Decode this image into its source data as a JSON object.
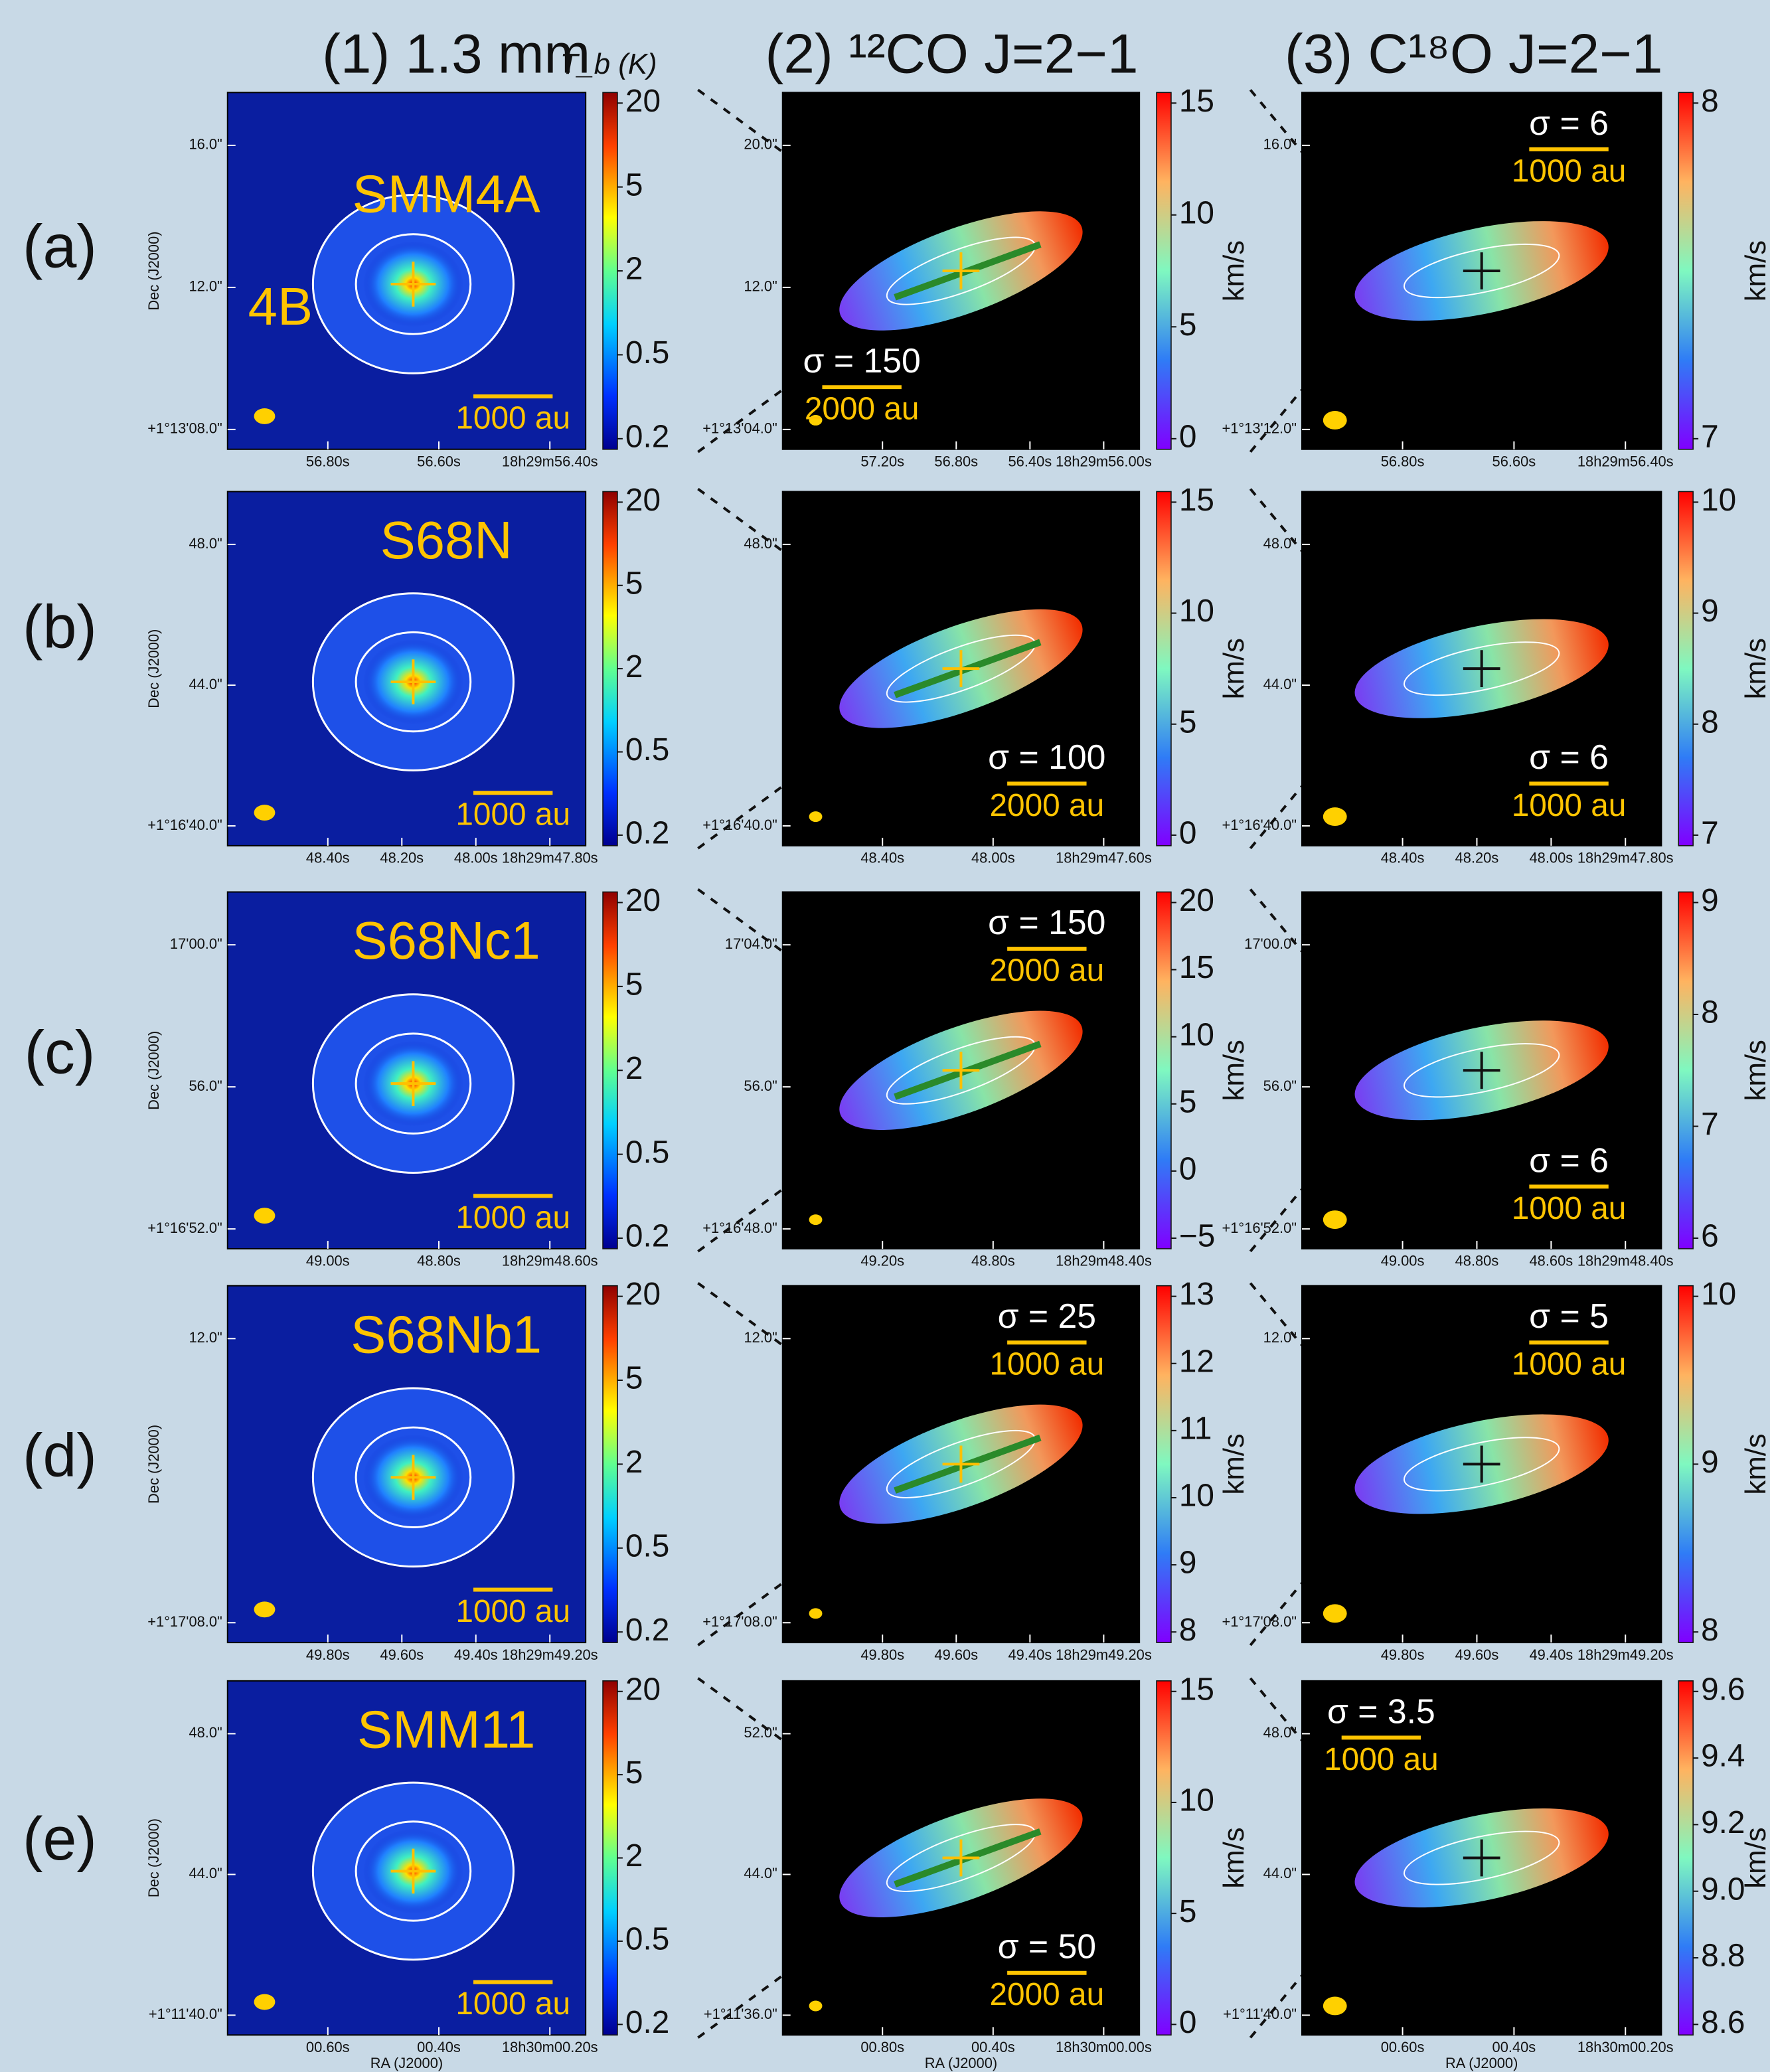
{
  "columns": [
    {
      "label": "(1) 1.3 mm",
      "unit": "T_b (K)"
    },
    {
      "label": "(2) ¹²CO J=2−1"
    },
    {
      "label": "(3) C¹⁸O J=2−1"
    }
  ],
  "rows": [
    {
      "label": "(a)",
      "panels": [
        {
          "names": [
            "SMM4A",
            "4B"
          ],
          "ylabel": "Dec (J2000)",
          "dec_ticks": [
            "16.0\"",
            "12.0\"",
            "+1°13'08.0\""
          ],
          "ra_ticks": [
            "56.80s",
            "56.60s",
            "18h29m56.40s"
          ],
          "scale": "1000 au",
          "cbar_ticks": [
            "20",
            "5",
            "2",
            "0.5",
            "0.2"
          ]
        },
        {
          "dec_ticks": [
            "20.0\"",
            "12.0\"",
            "+1°13'04.0\""
          ],
          "ra_ticks": [
            "57.20s",
            "56.80s",
            "56.40s",
            "18h29m56.00s"
          ],
          "sigma": "σ = 150",
          "scale": "2000 au",
          "cbar_ticks": [
            "15",
            "10",
            "5",
            "0"
          ],
          "cbar_label": "km/s"
        },
        {
          "dec_ticks": [
            "16.0\"",
            "+1°13'12.0\""
          ],
          "ra_ticks": [
            "56.80s",
            "56.60s",
            "18h29m56.40s"
          ],
          "sigma": "σ = 6",
          "scale": "1000 au",
          "cbar_ticks": [
            "8",
            "7"
          ],
          "cbar_label": "km/s"
        }
      ]
    },
    {
      "label": "(b)",
      "panels": [
        {
          "names": [
            "S68N"
          ],
          "ylabel": "Dec (J2000)",
          "dec_ticks": [
            "48.0\"",
            "44.0\"",
            "+1°16'40.0\""
          ],
          "ra_ticks": [
            "48.40s",
            "48.20s",
            "48.00s",
            "18h29m47.80s"
          ],
          "scale": "1000 au",
          "cbar_ticks": [
            "20",
            "5",
            "2",
            "0.5",
            "0.2"
          ]
        },
        {
          "dec_ticks": [
            "48.0\"",
            "+1°16'40.0\""
          ],
          "ra_ticks": [
            "48.40s",
            "48.00s",
            "18h29m47.60s"
          ],
          "sigma": "σ = 100",
          "scale": "2000 au",
          "cbar_ticks": [
            "15",
            "10",
            "5",
            "0"
          ],
          "cbar_label": "km/s"
        },
        {
          "dec_ticks": [
            "48.0\"",
            "44.0\"",
            "+1°16'40.0\""
          ],
          "ra_ticks": [
            "48.40s",
            "48.20s",
            "48.00s",
            "18h29m47.80s"
          ],
          "sigma": "σ = 6",
          "scale": "1000 au",
          "cbar_ticks": [
            "10",
            "9",
            "8",
            "7"
          ],
          "cbar_label": "km/s"
        }
      ]
    },
    {
      "label": "(c)",
      "panels": [
        {
          "names": [
            "S68Nc1"
          ],
          "ylabel": "Dec (J2000)",
          "dec_ticks": [
            "17'00.0\"",
            "56.0\"",
            "+1°16'52.0\""
          ],
          "ra_ticks": [
            "49.00s",
            "48.80s",
            "18h29m48.60s"
          ],
          "scale": "1000 au",
          "cbar_ticks": [
            "20",
            "5",
            "2",
            "0.5",
            "0.2"
          ]
        },
        {
          "dec_ticks": [
            "17'04.0\"",
            "56.0\"",
            "+1°16'48.0\""
          ],
          "ra_ticks": [
            "49.20s",
            "48.80s",
            "18h29m48.40s"
          ],
          "sigma": "σ = 150",
          "scale": "2000 au",
          "cbar_ticks": [
            "20",
            "15",
            "10",
            "5",
            "0",
            "−5"
          ],
          "cbar_label": "km/s"
        },
        {
          "dec_ticks": [
            "17'00.0\"",
            "56.0\"",
            "+1°16'52.0\""
          ],
          "ra_ticks": [
            "49.00s",
            "48.80s",
            "48.60s",
            "18h29m48.40s"
          ],
          "sigma": "σ = 6",
          "scale": "1000 au",
          "cbar_ticks": [
            "9",
            "8",
            "7",
            "6"
          ],
          "cbar_label": "km/s"
        }
      ]
    },
    {
      "label": "(d)",
      "panels": [
        {
          "names": [
            "S68Nb1"
          ],
          "ylabel": "Dec (J2000)",
          "dec_ticks": [
            "12.0\"",
            "+1°17'08.0\""
          ],
          "ra_ticks": [
            "49.80s",
            "49.60s",
            "49.40s",
            "18h29m49.20s"
          ],
          "scale": "1000 au",
          "cbar_ticks": [
            "20",
            "5",
            "2",
            "0.5",
            "0.2"
          ]
        },
        {
          "dec_ticks": [
            "12.0\"",
            "+1°17'08.0\""
          ],
          "ra_ticks": [
            "49.80s",
            "49.60s",
            "49.40s",
            "18h29m49.20s"
          ],
          "sigma": "σ = 25",
          "scale": "1000 au",
          "cbar_ticks": [
            "13",
            "12",
            "11",
            "10",
            "9",
            "8"
          ],
          "cbar_label": "km/s"
        },
        {
          "dec_ticks": [
            "12.0\"",
            "+1°17'08.0\""
          ],
          "ra_ticks": [
            "49.80s",
            "49.60s",
            "49.40s",
            "18h29m49.20s"
          ],
          "sigma": "σ = 5",
          "scale": "1000 au",
          "cbar_ticks": [
            "10",
            "9",
            "8"
          ],
          "cbar_label": "km/s"
        }
      ]
    },
    {
      "label": "(e)",
      "panels": [
        {
          "names": [
            "SMM11"
          ],
          "ylabel": "Dec (J2000)",
          "xlabel": "RA (J2000)",
          "dec_ticks": [
            "48.0\"",
            "44.0\"",
            "+1°11'40.0\""
          ],
          "ra_ticks": [
            "00.60s",
            "00.40s",
            "18h30m00.20s"
          ],
          "scale": "1000 au",
          "cbar_ticks": [
            "20",
            "5",
            "2",
            "0.5",
            "0.2"
          ]
        },
        {
          "xlabel": "RA (J2000)",
          "dec_ticks": [
            "52.0\"",
            "44.0\"",
            "+1°11'36.0\""
          ],
          "ra_ticks": [
            "00.80s",
            "00.40s",
            "18h30m00.00s"
          ],
          "sigma": "σ = 50",
          "scale": "2000 au",
          "cbar_ticks": [
            "15",
            "10",
            "5",
            "0"
          ],
          "cbar_label": "km/s"
        },
        {
          "xlabel": "RA (J2000)",
          "dec_ticks": [
            "48.0\"",
            "44.0\"",
            "+1°11'40.0\""
          ],
          "ra_ticks": [
            "00.60s",
            "00.40s",
            "18h30m00.20s"
          ],
          "sigma": "σ = 3.5",
          "scale": "1000 au",
          "cbar_ticks": [
            "9.6",
            "9.4",
            "9.2",
            "9.0",
            "8.8",
            "8.6"
          ],
          "cbar_label": "km/s"
        }
      ]
    }
  ]
}
